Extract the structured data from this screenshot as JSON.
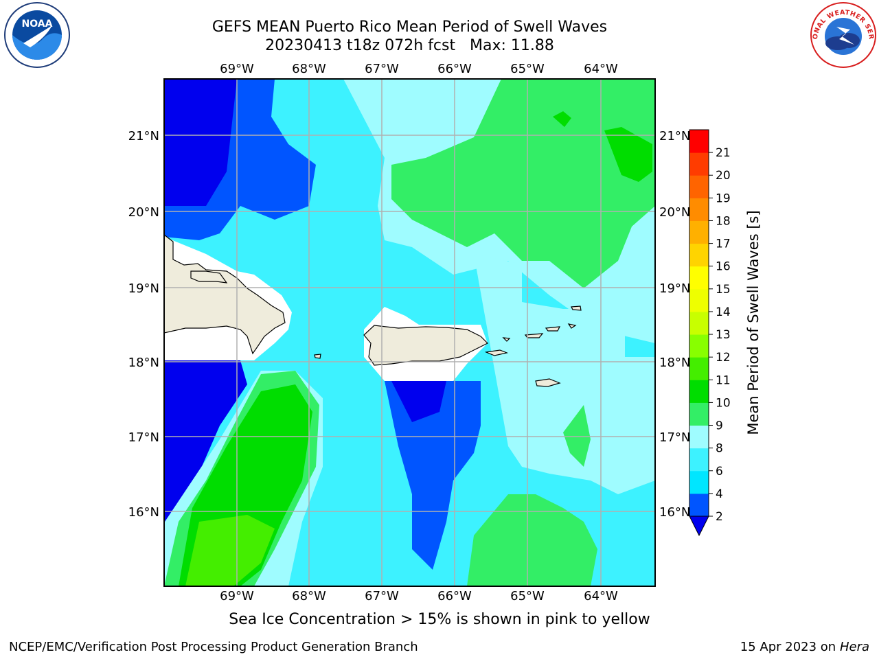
{
  "header": {
    "title_line1": "GEFS MEAN Puerto Rico Mean Period of Swell Waves",
    "title_line2": "20230413 t18z 072h fcst   Max: 11.88"
  },
  "logos": {
    "left": {
      "name": "noaa-logo",
      "text": "NOAA"
    },
    "right": {
      "name": "nws-logo",
      "text": "NATIONAL WEATHER SERVICE"
    }
  },
  "map": {
    "lon_labels": [
      "69°W",
      "68°W",
      "67°W",
      "66°W",
      "65°W",
      "64°W"
    ],
    "lat_labels": [
      "21°N",
      "20°N",
      "19°N",
      "18°N",
      "17°N",
      "16°N"
    ],
    "land_color": "#efecdc",
    "grid_color": "#b0b0b0"
  },
  "colorbar": {
    "label": "Mean Period of Swell Waves [s]",
    "ticks": [
      "2",
      "4",
      "6",
      "8",
      "9",
      "10",
      "11",
      "12",
      "13",
      "14",
      "15",
      "16",
      "17",
      "18",
      "19",
      "20",
      "21"
    ],
    "colors": [
      "#0055ff",
      "#00e6ff",
      "#3df2ff",
      "#9ffcff",
      "#33ee66",
      "#00dd00",
      "#44ee00",
      "#88ff00",
      "#c8ff00",
      "#eeff00",
      "#ffff00",
      "#ffd400",
      "#ffb000",
      "#ff8c00",
      "#ff6400",
      "#ff3c00",
      "#ff0000"
    ],
    "under_color": "#0000ee"
  },
  "footer": {
    "subtitle": "Sea Ice Concentration > 15% is shown in pink to yellow",
    "left": "NCEP/EMC/Verification Post Processing Product Generation Branch",
    "right_prefix": "15 Apr 2023 on",
    "right_host": "Hera"
  }
}
